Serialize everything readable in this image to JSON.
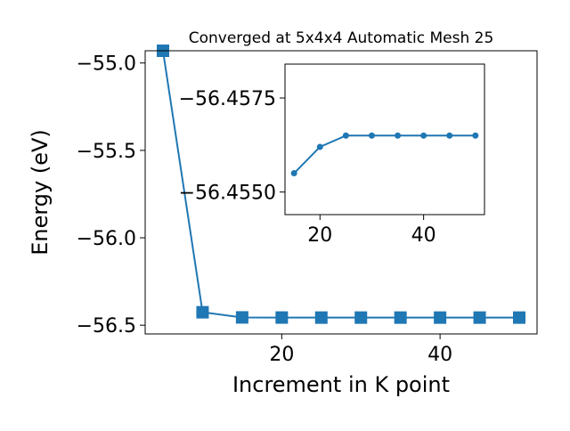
{
  "chart_data": [
    {
      "type": "line",
      "title": "Converged at 5x4x4 Automatic Mesh 25",
      "x_label": "Increment in K point",
      "y_label": "Energy (eV)",
      "x": [
        5,
        10,
        15,
        20,
        25,
        30,
        35,
        40,
        45,
        50
      ],
      "series": [
        {
          "color": "#1f77b4",
          "marker": "square",
          "values": [
            -54.93,
            -56.426,
            -56.4555,
            -56.4562,
            -56.4565,
            -56.4565,
            -56.4565,
            -56.4565,
            -56.4565,
            -56.4565
          ]
        }
      ],
      "xlim": [
        2.75,
        52.25
      ],
      "ylim": [
        -56.55,
        -54.93
      ],
      "xticks": [
        20,
        40
      ],
      "yticks": [
        {
          "value": -55.0,
          "label": "−55.0"
        },
        {
          "value": -55.5,
          "label": "−55.5"
        },
        {
          "value": -56.0,
          "label": "−56.0"
        },
        {
          "value": -56.5,
          "label": "−56.5"
        }
      ]
    },
    {
      "type": "line",
      "x": [
        15,
        20,
        25,
        30,
        35,
        40,
        45,
        50
      ],
      "series": [
        {
          "color": "#1f77b4",
          "marker": "circle",
          "values": [
            -56.4555,
            -56.4562,
            -56.4565,
            -56.4565,
            -56.4565,
            -56.4565,
            -56.4565,
            -56.4565
          ]
        }
      ],
      "xlim": [
        13.25,
        51.75
      ],
      "ylim": [
        -56.4544,
        -56.4584
      ],
      "xticks": [
        20,
        40
      ],
      "yticks": [
        {
          "value": -56.4575,
          "label": "−56.4575"
        },
        {
          "value": -56.455,
          "label": "−56.4550"
        }
      ]
    }
  ]
}
